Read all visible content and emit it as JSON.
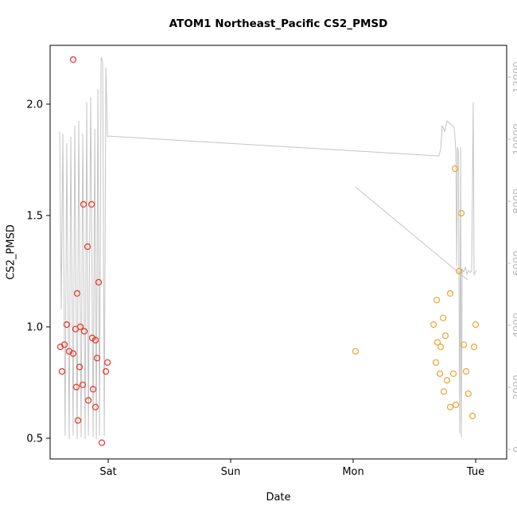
{
  "title": "ATOM1 Northeast_Pacific CS2_PMSD",
  "xlabel": "Date",
  "ylabel": "CS2_PMSD",
  "chart_data": {
    "type": "scatter",
    "title": "ATOM1 Northeast_Pacific CS2_PMSD",
    "xlabel": "Date",
    "ylabel": "CS2_PMSD",
    "grid": false,
    "legend": "none",
    "xlim": [
      -0.474,
      3.253
    ],
    "ylim_left": [
      0.407,
      2.264
    ],
    "ylim_right": [
      -308,
      13026
    ],
    "x_ticks": {
      "positions": [
        0,
        1,
        2,
        3
      ],
      "labels": [
        "Sat",
        "Sun",
        "Mon",
        "Tue"
      ]
    },
    "y_ticks_left": [
      0.5,
      1.0,
      1.5,
      2.0
    ],
    "y_ticks_right": [
      0,
      2000,
      4000,
      6000,
      8000,
      10000,
      12000
    ],
    "colors": {
      "axis": "#000000",
      "right_axis": "#b8b8b8",
      "red_points": "#e63323",
      "orange_points": "#f0a22e",
      "gray_line": "#c4c4c4"
    },
    "series": [
      {
        "name": "gray-line-right-axis",
        "type": "line",
        "axis": "right",
        "color": "#c4c4c4",
        "segments": [
          [
            [
              -0.396,
              10250
            ],
            [
              -0.383,
              4500
            ],
            [
              -0.37,
              10180
            ],
            [
              -0.351,
              440
            ],
            [
              -0.338,
              9870
            ],
            [
              -0.318,
              330
            ],
            [
              -0.305,
              10080
            ],
            [
              -0.286,
              440
            ],
            [
              -0.273,
              10440
            ],
            [
              -0.253,
              330
            ],
            [
              -0.24,
              10590
            ],
            [
              -0.221,
              390
            ],
            [
              -0.208,
              10180
            ],
            [
              -0.188,
              330
            ],
            [
              -0.175,
              11200
            ],
            [
              -0.162,
              440
            ],
            [
              -0.143,
              11360
            ],
            [
              -0.123,
              390
            ],
            [
              -0.11,
              10330
            ],
            [
              -0.097,
              330
            ],
            [
              -0.084,
              11620
            ],
            [
              -0.071,
              440
            ],
            [
              -0.058,
              12640
            ],
            [
              -0.045,
              12490
            ],
            [
              -0.032,
              440
            ],
            [
              -0.019,
              12310
            ],
            [
              -0.006,
              10080
            ],
            [
              0.006,
              10100
            ],
            [
              2.7,
              9460
            ],
            [
              2.714,
              9670
            ],
            [
              2.727,
              10440
            ],
            [
              2.747,
              10260
            ],
            [
              2.766,
              10590
            ],
            [
              2.792,
              10490
            ],
            [
              2.812,
              10440
            ],
            [
              2.825,
              10380
            ],
            [
              2.838,
              9620
            ],
            [
              2.845,
              5900
            ],
            [
              2.851,
              9740
            ],
            [
              2.858,
              9620
            ],
            [
              2.87,
              510
            ],
            [
              2.877,
              9740
            ],
            [
              2.883,
              390
            ],
            [
              2.89,
              5820
            ],
            [
              2.903,
              5720
            ],
            [
              2.916,
              5870
            ],
            [
              2.929,
              5640
            ],
            [
              2.942,
              5770
            ],
            [
              2.955,
              5700
            ],
            [
              2.967,
              5750
            ],
            [
              2.98,
              11200
            ],
            [
              2.987,
              5640
            ],
            [
              3.005,
              5770
            ]
          ],
          [
            [
              2.019,
              8460
            ],
            [
              2.935,
              5460
            ]
          ]
        ]
      },
      {
        "name": "cs2-pmsd-red",
        "type": "scatter",
        "axis": "left",
        "color": "#e63323",
        "points": [
          [
            -0.286,
            2.2
          ],
          [
            -0.201,
            1.55
          ],
          [
            -0.136,
            1.55
          ],
          [
            -0.169,
            1.36
          ],
          [
            -0.078,
            1.2
          ],
          [
            -0.253,
            1.15
          ],
          [
            -0.338,
            1.01
          ],
          [
            -0.266,
            0.99
          ],
          [
            -0.227,
            1.0
          ],
          [
            -0.195,
            0.98
          ],
          [
            -0.39,
            0.91
          ],
          [
            -0.357,
            0.92
          ],
          [
            -0.318,
            0.89
          ],
          [
            -0.286,
            0.88
          ],
          [
            -0.13,
            0.95
          ],
          [
            -0.104,
            0.94
          ],
          [
            -0.091,
            0.86
          ],
          [
            -0.377,
            0.8
          ],
          [
            -0.234,
            0.82
          ],
          [
            -0.006,
            0.84
          ],
          [
            -0.019,
            0.8
          ],
          [
            -0.26,
            0.73
          ],
          [
            -0.208,
            0.74
          ],
          [
            -0.123,
            0.72
          ],
          [
            -0.162,
            0.67
          ],
          [
            -0.104,
            0.64
          ],
          [
            -0.247,
            0.58
          ],
          [
            -0.052,
            0.48
          ]
        ]
      },
      {
        "name": "cs2-pmsd-orange",
        "type": "scatter",
        "axis": "left",
        "color": "#f0a22e",
        "points": [
          [
            2.019,
            0.89
          ],
          [
            2.831,
            1.71
          ],
          [
            2.883,
            1.51
          ],
          [
            2.864,
            1.25
          ],
          [
            2.792,
            1.15
          ],
          [
            2.682,
            1.12
          ],
          [
            2.734,
            1.04
          ],
          [
            2.656,
            1.01
          ],
          [
            2.753,
            0.96
          ],
          [
            3.0,
            1.01
          ],
          [
            2.903,
            0.92
          ],
          [
            2.987,
            0.91
          ],
          [
            2.714,
            0.91
          ],
          [
            2.688,
            0.93
          ],
          [
            2.675,
            0.84
          ],
          [
            2.766,
            0.76
          ],
          [
            2.818,
            0.79
          ],
          [
            2.922,
            0.8
          ],
          [
            2.708,
            0.79
          ],
          [
            2.74,
            0.71
          ],
          [
            2.838,
            0.65
          ],
          [
            2.94,
            0.7
          ],
          [
            2.792,
            0.64
          ],
          [
            2.974,
            0.6
          ]
        ]
      }
    ]
  }
}
